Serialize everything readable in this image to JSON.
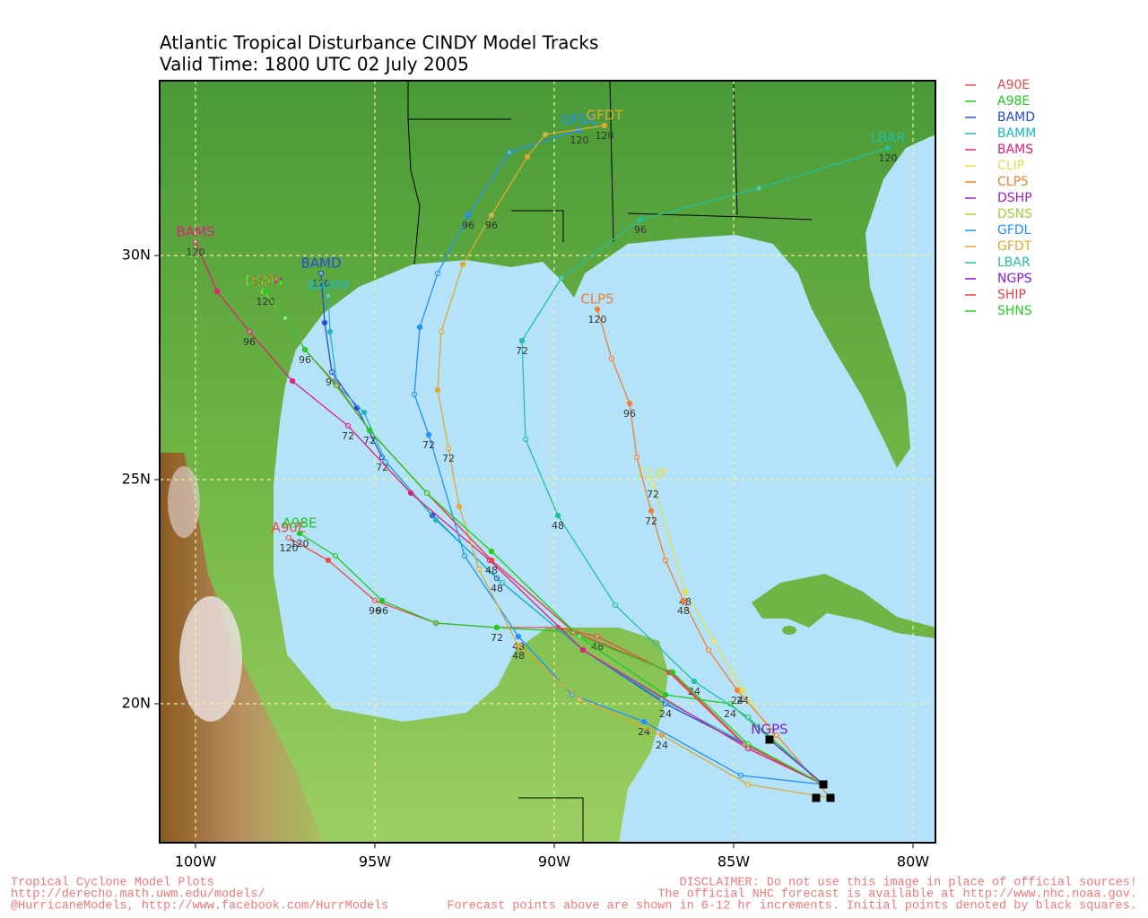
{
  "chart_data": {
    "type": "track-map",
    "title": "Atlantic Tropical Disturbance CINDY Model Tracks",
    "subtitle": "Valid Time: 1800 UTC 02 July 2005",
    "xlim": [
      -101,
      -79.375
    ],
    "ylim": [
      16.9,
      33.9
    ],
    "xticks": [
      {
        "value": -100,
        "label": "100W"
      },
      {
        "value": -95,
        "label": "95W"
      },
      {
        "value": -90,
        "label": "90W"
      },
      {
        "value": -85,
        "label": "85W"
      },
      {
        "value": -80,
        "label": "80W"
      }
    ],
    "yticks": [
      {
        "value": 20,
        "label": "20N"
      },
      {
        "value": 25,
        "label": "25N"
      },
      {
        "value": 30,
        "label": "30N"
      }
    ],
    "grid": true,
    "legend": "right",
    "initial_points": {
      "lon": [
        -82.5,
        -82.7,
        -82.3,
        -84.0
      ],
      "lat": [
        18.2,
        17.9,
        17.9,
        19.2
      ]
    },
    "series": [
      {
        "name": "A90E",
        "color": "#f04848",
        "lon": [
          -82.5,
          -84.6,
          -86.8,
          -88.8,
          -89.9,
          -91.6,
          -93.3,
          -95.0,
          -96.3,
          -97.4
        ],
        "lat": [
          18.2,
          19.0,
          20.7,
          21.5,
          21.7,
          21.7,
          21.8,
          22.3,
          23.2,
          23.7
        ],
        "labels": [
          null,
          null,
          null,
          "48",
          null,
          null,
          null,
          "96",
          null,
          "120"
        ]
      },
      {
        "name": "A98E",
        "color": "#20c820",
        "lon": [
          -82.5,
          -85.1,
          -86.9,
          -89.5,
          -91.6,
          -93.3,
          -94.8,
          -96.1,
          -97.1
        ],
        "lat": [
          18.2,
          20.0,
          20.2,
          21.6,
          21.7,
          21.8,
          22.3,
          23.3,
          23.8
        ],
        "labels": [
          null,
          "24",
          null,
          null,
          "72",
          null,
          "96",
          null,
          "120"
        ]
      },
      {
        "name": "BAMD",
        "color": "#2848e0",
        "lon": [
          -82.5,
          -86.9,
          -89.2,
          -91.6,
          -93.4,
          -94.8,
          -95.5,
          -96.2,
          -96.4,
          -96.5
        ],
        "lat": [
          18.2,
          20.0,
          21.2,
          22.8,
          24.2,
          25.5,
          26.6,
          27.4,
          28.5,
          29.6
        ],
        "labels": [
          null,
          "24",
          null,
          "48",
          null,
          "72",
          null,
          "96",
          null,
          "120"
        ]
      },
      {
        "name": "BAMM",
        "color": "#20b8c0",
        "lon": [
          -82.5,
          -87.0,
          -89.2,
          -91.45,
          -93.3,
          -94.7,
          -95.3,
          -96.05,
          -96.25,
          -96.3
        ],
        "lat": [
          18.2,
          20.1,
          21.2,
          22.7,
          24.1,
          25.4,
          26.5,
          27.1,
          28.3,
          29.1
        ],
        "labels": [
          null,
          null,
          null,
          null,
          null,
          null,
          null,
          null,
          null,
          null
        ]
      },
      {
        "name": "BAMS",
        "color": "#e0207a",
        "lon": [
          -82.5,
          -84.6,
          -89.2,
          -91.8,
          -94.0,
          -95.75,
          -97.3,
          -98.5,
          -99.4,
          -100.0
        ],
        "lat": [
          18.2,
          19.0,
          21.2,
          23.2,
          24.7,
          26.2,
          27.2,
          28.3,
          29.2,
          30.3
        ],
        "labels": [
          null,
          null,
          null,
          null,
          null,
          "72",
          null,
          "96",
          null,
          "120"
        ]
      },
      {
        "name": "CLIP",
        "color": "#e8e040",
        "lon": [
          -82.5,
          -83.75,
          -84.75,
          -85.55,
          -86.35,
          -87.25
        ],
        "lat": [
          18.2,
          19.1,
          20.3,
          21.4,
          22.5,
          24.9
        ],
        "labels": [
          null,
          null,
          "24",
          null,
          "48",
          "72"
        ]
      },
      {
        "name": "CLP5",
        "color": "#f08030",
        "lon": [
          -82.3,
          -83.8,
          -84.9,
          -85.7,
          -86.4,
          -86.9,
          -87.3,
          -87.7,
          -87.9,
          -88.4,
          -88.8
        ],
        "lat": [
          17.9,
          19.3,
          20.3,
          21.2,
          22.3,
          23.2,
          24.3,
          25.5,
          26.7,
          27.7,
          28.8
        ],
        "labels": [
          null,
          null,
          "24",
          null,
          "48",
          null,
          "72",
          null,
          "96",
          null,
          "120"
        ]
      },
      {
        "name": "DSHP",
        "color": "#a020d0",
        "lon": [
          -82.5,
          -84.7,
          -86.75,
          -89.45,
          -91.75,
          -93.55,
          -95.15,
          -96.05,
          -96.95,
          -97.5,
          -98.1
        ],
        "lat": [
          18.2,
          19.1,
          20.7,
          21.6,
          23.2,
          24.7,
          26.1,
          27.1,
          27.9,
          28.6,
          29.2
        ],
        "labels": [
          null,
          null,
          null,
          null,
          null,
          null,
          null,
          null,
          null,
          null,
          null
        ]
      },
      {
        "name": "DSNS",
        "color": "#a0d040",
        "lon": [
          -82.5,
          -84.6,
          -86.7,
          -89.3,
          -91.75,
          -93.55,
          -95.15,
          -96.08,
          -96.95,
          -97.5,
          -98.1
        ],
        "lat": [
          18.2,
          19.1,
          20.7,
          21.5,
          23.4,
          24.7,
          26.1,
          27.1,
          27.9,
          28.6,
          29.2
        ],
        "labels": [
          null,
          null,
          null,
          null,
          null,
          null,
          null,
          null,
          null,
          null,
          null
        ]
      },
      {
        "name": "GFDL",
        "color": "#1e90ff",
        "lon": [
          -82.5,
          -84.8,
          -87.5,
          -89.5,
          -91.0,
          -92.5,
          -93.5,
          -93.9,
          -93.75,
          -93.25,
          -92.4,
          -91.25,
          -89.3
        ],
        "lat": [
          18.2,
          18.4,
          19.6,
          20.2,
          21.5,
          23.3,
          26.0,
          26.9,
          28.4,
          29.6,
          30.9,
          32.3,
          32.8
        ],
        "labels": [
          null,
          null,
          "24",
          null,
          "48",
          null,
          "72",
          null,
          null,
          null,
          "96",
          null,
          "120"
        ]
      },
      {
        "name": "GFDT",
        "color": "#e0a830",
        "lon": [
          -82.3,
          -84.6,
          -87.0,
          -89.3,
          -91.0,
          -92.1,
          -92.65,
          -92.95,
          -93.25,
          -93.15,
          -92.55,
          -91.75,
          -90.75,
          -90.25,
          -88.6
        ],
        "lat": [
          17.9,
          18.2,
          19.3,
          20.1,
          21.3,
          23.0,
          24.4,
          25.7,
          27.0,
          28.3,
          29.8,
          30.9,
          32.2,
          32.7,
          32.9
        ],
        "labels": [
          null,
          null,
          "24",
          null,
          "48",
          null,
          null,
          "72",
          null,
          null,
          null,
          "96",
          null,
          null,
          "120"
        ]
      },
      {
        "name": "LBAR",
        "color": "#20c0a0",
        "lon": [
          -82.5,
          -84.6,
          -86.1,
          -88.3,
          -89.9,
          -90.8,
          -90.9,
          -89.8,
          -87.6,
          -84.3,
          -80.7
        ],
        "lat": [
          18.2,
          19.7,
          20.5,
          22.2,
          24.2,
          25.9,
          28.1,
          29.5,
          30.8,
          31.5,
          32.4
        ],
        "labels": [
          null,
          null,
          "24",
          null,
          "48",
          null,
          "72",
          null,
          "96",
          null,
          "120"
        ]
      },
      {
        "name": "NGPS",
        "color": "#8020e0",
        "lon": [
          -82.5,
          -84.0
        ],
        "lat": [
          18.2,
          19.2
        ],
        "labels": [
          null,
          null
        ]
      },
      {
        "name": "SHIP",
        "color": "#f04040",
        "lon": [
          -82.5,
          -84.7,
          -86.75,
          -89.45,
          -91.75,
          -93.55,
          -95.15,
          -96.05,
          -96.95,
          -97.5,
          -98.05
        ],
        "lat": [
          18.2,
          19.1,
          20.7,
          21.6,
          23.2,
          24.7,
          26.1,
          27.1,
          27.9,
          28.6,
          29.2
        ],
        "labels": [
          null,
          null,
          null,
          null,
          "48",
          null,
          "72",
          null,
          "96",
          null,
          "120"
        ]
      },
      {
        "name": "SHNS",
        "color": "#20d020",
        "lon": [
          -82.5,
          -84.6,
          -86.7,
          -89.3,
          -91.75,
          -93.55,
          -95.15,
          -96.08,
          -96.95,
          -97.5,
          -98.05
        ],
        "lat": [
          18.2,
          19.1,
          20.7,
          21.5,
          23.4,
          24.7,
          26.1,
          27.1,
          27.9,
          28.6,
          29.2
        ],
        "labels": [
          null,
          null,
          null,
          null,
          null,
          null,
          null,
          null,
          null,
          null,
          null
        ]
      }
    ],
    "footer_left": [
      "Tropical Cyclone Model Plots",
      "http://derecho.math.uwm.edu/models/",
      "@HurricaneModels, http://www.facebook.com/HurrModels"
    ],
    "footer_right": [
      "DISCLAIMER: Do not use this image in place of official sources!",
      "The official NHC forecast is available at http://www.nhc.noaa.gov.",
      "Forecast points above are shown in 6-12 hr increments. Initial points denoted by black squares."
    ]
  }
}
